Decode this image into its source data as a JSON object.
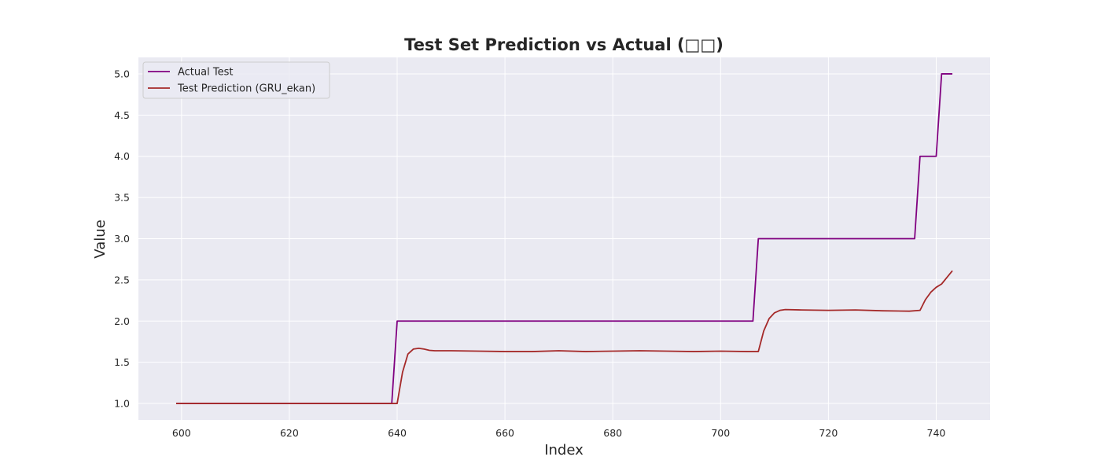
{
  "chart_data": {
    "type": "line",
    "title": "Test Set Prediction vs Actual (□□)",
    "xlabel": "Index",
    "ylabel": "Value",
    "xlim": [
      592,
      750
    ],
    "ylim": [
      0.8,
      5.2
    ],
    "xticks": [
      600,
      620,
      640,
      660,
      680,
      700,
      720,
      740
    ],
    "yticks": [
      1.0,
      1.5,
      2.0,
      2.5,
      3.0,
      3.5,
      4.0,
      4.5,
      5.0
    ],
    "xtick_labels": [
      "600",
      "620",
      "640",
      "660",
      "680",
      "700",
      "720",
      "740"
    ],
    "ytick_labels": [
      "1.0",
      "1.5",
      "2.0",
      "2.5",
      "3.0",
      "3.5",
      "4.0",
      "4.5",
      "5.0"
    ],
    "grid": true,
    "legend_position": "upper-left",
    "background": "#eaeaf2",
    "series": [
      {
        "name": "Actual Test",
        "color": "#800080",
        "x": [
          599,
          639,
          640,
          706,
          707,
          736,
          737,
          740,
          741,
          743
        ],
        "y": [
          1.0,
          1.0,
          2.0,
          2.0,
          3.0,
          3.0,
          4.0,
          4.0,
          5.0,
          5.0
        ]
      },
      {
        "name": "Test Prediction (GRU_ekan)",
        "color": "#a52a2a",
        "x": [
          599,
          605,
          610,
          615,
          620,
          625,
          630,
          635,
          638,
          640,
          641,
          642,
          643,
          644,
          645,
          646,
          647,
          650,
          655,
          660,
          665,
          670,
          675,
          680,
          685,
          690,
          695,
          700,
          705,
          707,
          708,
          709,
          710,
          711,
          712,
          715,
          720,
          725,
          730,
          735,
          737,
          738,
          739,
          740,
          741,
          742,
          743
        ],
        "y": [
          1.0,
          1.0,
          1.0,
          1.0,
          1.0,
          1.0,
          1.0,
          1.0,
          1.0,
          1.0,
          1.38,
          1.6,
          1.66,
          1.67,
          1.66,
          1.645,
          1.64,
          1.64,
          1.635,
          1.63,
          1.63,
          1.64,
          1.63,
          1.635,
          1.64,
          1.635,
          1.63,
          1.635,
          1.63,
          1.63,
          1.88,
          2.03,
          2.1,
          2.13,
          2.14,
          2.135,
          2.13,
          2.135,
          2.125,
          2.12,
          2.13,
          2.26,
          2.35,
          2.41,
          2.45,
          2.53,
          2.61
        ]
      }
    ]
  }
}
